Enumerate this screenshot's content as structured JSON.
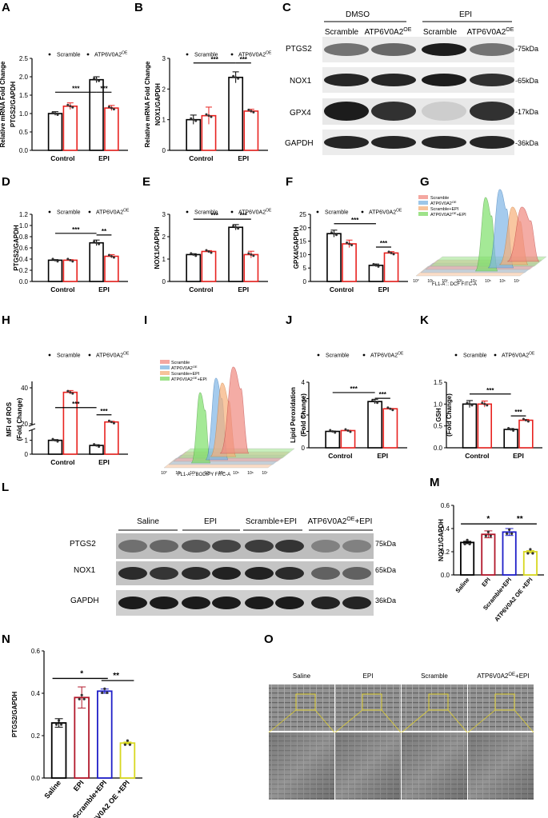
{
  "panel_labels": [
    "A",
    "B",
    "C",
    "D",
    "E",
    "F",
    "G",
    "H",
    "I",
    "J",
    "K",
    "L",
    "M",
    "N",
    "O"
  ],
  "legend": {
    "scramble": "Scramble",
    "oe_base": "ATP6V0A2",
    "oe_sup": "OE"
  },
  "colors": {
    "scramble": "#000000",
    "oe": "#e8221f",
    "sig": "#000000",
    "saline": "#000000",
    "epi": "#b2182b",
    "scr_epi": "#1f1fc8",
    "oe_epi": "#d8d820"
  },
  "blot_c": {
    "groups": [
      "DMSO",
      "EPI"
    ],
    "lanes": [
      "Scramble",
      "ATP6V0A2",
      "Scramble",
      "ATP6V0A2"
    ],
    "lane_sup": [
      "",
      "OE",
      "",
      "OE"
    ],
    "proteins": [
      "PTGS2",
      "NOX1",
      "GPX4",
      "GAPDH"
    ],
    "sizes": [
      "-75kDa",
      "-65kDa",
      "-17kDa",
      "-36kDa"
    ]
  },
  "blot_l": {
    "groups": [
      "Saline",
      "EPI",
      "Scramble+EPI",
      "ATP6V0A2"
    ],
    "group_sup": [
      "",
      "",
      "",
      "OE"
    ],
    "group_suffix": [
      "",
      "",
      "",
      "+EPI"
    ],
    "proteins": [
      "PTGS2",
      "NOX1",
      "GAPDH"
    ],
    "sizes": [
      "75kDa",
      "65kDa",
      "36kDa"
    ]
  },
  "flow_g": {
    "legend": [
      "Scramble",
      "ATP6V0A2",
      "Scramble+EPI",
      "ATP6V0A2"
    ],
    "legend_sup": [
      "",
      "OE",
      "",
      "OE"
    ],
    "legend_suffix": [
      "",
      "",
      "",
      "+EPI"
    ],
    "xlabel": "FL1-A :: DCF FITC-A",
    "ticks": [
      "10°",
      "10¹",
      "10²",
      "10³",
      "10⁴",
      "10⁵",
      "10⁶",
      "10⁷"
    ]
  },
  "flow_i": {
    "legend": [
      "Scramble",
      "ATP6V0A2",
      "Scramble+EPI",
      "ATP6V0A2"
    ],
    "legend_sup": [
      "",
      "OE",
      "",
      "OE"
    ],
    "legend_suffix": [
      "",
      "",
      "",
      "+EPI"
    ],
    "xlabel": "FL1-A :: BODIPY FITC-A",
    "ticks": [
      "10°",
      "10¹",
      "10²",
      "10³",
      "10⁴",
      "10⁵",
      "10⁶",
      "10⁷"
    ]
  },
  "tem_o": {
    "labels": [
      "Saline",
      "EPI",
      "Scramble",
      "ATP6V0A2"
    ],
    "label_sup": [
      "",
      "",
      "",
      "OE"
    ],
    "label_suffix": [
      "",
      "",
      "",
      "+EPI"
    ]
  },
  "chart_data": [
    {
      "id": "A",
      "type": "bar",
      "ylabel": [
        "Relative mRNA Fold Change",
        "PTGS2/GAPDH"
      ],
      "categories": [
        "Control",
        "EPI"
      ],
      "series": [
        {
          "name": "Scramble",
          "values": [
            1.0,
            1.92
          ],
          "err": [
            0.05,
            0.08
          ]
        },
        {
          "name": "ATP6V0A2 OE",
          "values": [
            1.2,
            1.15
          ],
          "err": [
            0.09,
            0.07
          ]
        }
      ],
      "ylim": [
        0,
        2.5
      ],
      "yticks": [
        "0.0",
        "0.5",
        "1.0",
        "1.5",
        "2.0",
        "2.5"
      ],
      "sig": [
        {
          "label": "***",
          "y": 1.58
        },
        {
          "label": "***",
          "y": 1.58
        }
      ]
    },
    {
      "id": "B",
      "type": "bar",
      "ylabel": [
        "Relative mRNA Fold Change",
        "NOX1/GAPDH"
      ],
      "categories": [
        "Control",
        "EPI"
      ],
      "series": [
        {
          "name": "Scramble",
          "values": [
            1.0,
            2.38
          ],
          "err": [
            0.15,
            0.18
          ]
        },
        {
          "name": "ATP6V0A2 OE",
          "values": [
            1.13,
            1.28
          ],
          "err": [
            0.28,
            0.06
          ]
        }
      ],
      "ylim": [
        0,
        3
      ],
      "yticks": [
        "0",
        "1",
        "2",
        "3"
      ],
      "sig": [
        {
          "label": "***",
          "y": 2.85
        },
        {
          "label": "***",
          "y": 2.85
        }
      ]
    },
    {
      "id": "D",
      "type": "bar",
      "ylabel": [
        "PTGS2/GAPDH"
      ],
      "categories": [
        "Control",
        "EPI"
      ],
      "series": [
        {
          "name": "Scramble",
          "values": [
            0.38,
            0.69
          ],
          "err": [
            0.01,
            0.05
          ]
        },
        {
          "name": "ATP6V0A2 OE",
          "values": [
            0.38,
            0.45
          ],
          "err": [
            0.01,
            0.03
          ]
        }
      ],
      "ylim": [
        0,
        1.2
      ],
      "yticks": [
        "0.0",
        "0.2",
        "0.4",
        "0.6",
        "0.8",
        "1.0",
        "1.2"
      ],
      "sig": [
        {
          "label": "***",
          "y": 0.86
        },
        {
          "label": "**",
          "y": 0.83
        }
      ]
    },
    {
      "id": "E",
      "type": "bar",
      "ylabel": [
        "NOX1/GAPDH"
      ],
      "categories": [
        "Control",
        "EPI"
      ],
      "series": [
        {
          "name": "Scramble",
          "values": [
            1.2,
            2.42
          ],
          "err": [
            0.04,
            0.12
          ]
        },
        {
          "name": "ATP6V0A2 OE",
          "values": [
            1.34,
            1.2
          ],
          "err": [
            0.04,
            0.15
          ]
        }
      ],
      "ylim": [
        0,
        3
      ],
      "yticks": [
        "0",
        "1",
        "2",
        "3"
      ],
      "sig": [
        {
          "label": "***",
          "y": 2.78
        },
        {
          "label": "***",
          "y": 2.78
        }
      ]
    },
    {
      "id": "F",
      "type": "bar",
      "ylabel": [
        "GPX4/GAPDH"
      ],
      "categories": [
        "Control",
        "EPI"
      ],
      "series": [
        {
          "name": "Scramble",
          "values": [
            17.8,
            6.0
          ],
          "err": [
            1.3,
            0.5
          ]
        },
        {
          "name": "ATP6V0A2 OE",
          "values": [
            14.0,
            10.6
          ],
          "err": [
            1.4,
            0.5
          ]
        }
      ],
      "ylim": [
        0,
        25
      ],
      "yticks": [
        "0",
        "5",
        "10",
        "15",
        "20",
        "25"
      ],
      "sig": [
        {
          "label": "***",
          "y": 21.5
        },
        {
          "label": "***",
          "y": 12.8
        }
      ]
    },
    {
      "id": "H",
      "type": "bar",
      "ylabel": [
        "MFI of ROS",
        "(Fold Change)"
      ],
      "categories": [
        "Control",
        "EPI"
      ],
      "series": [
        {
          "name": "Scramble",
          "values": [
            1.0,
            0.63
          ],
          "err": [
            0.05,
            0.05
          ]
        },
        {
          "name": "ATP6V0A2 OE",
          "values": [
            37.5,
            21.0
          ],
          "err": [
            1.0,
            0.4
          ]
        }
      ],
      "ylim": [
        0,
        40
      ],
      "yticks": [
        "0",
        "1",
        "20",
        "40"
      ],
      "broken_axis": true,
      "sig": [
        {
          "label": "***",
          "y": 29
        },
        {
          "label": "***",
          "y": 25
        }
      ]
    },
    {
      "id": "J",
      "type": "bar",
      "ylabel": [
        "Lipid Peroxidation",
        "(Fold Change)"
      ],
      "categories": [
        "Control",
        "EPI"
      ],
      "series": [
        {
          "name": "Scramble",
          "values": [
            1.0,
            2.82
          ],
          "err": [
            0.02,
            0.14
          ]
        },
        {
          "name": "ATP6V0A2 OE",
          "values": [
            1.05,
            2.38
          ],
          "err": [
            0.02,
            0.02
          ]
        }
      ],
      "ylim": [
        0,
        4
      ],
      "yticks": [
        "0",
        "1",
        "2",
        "3",
        "4"
      ],
      "sig": [
        {
          "label": "***",
          "y": 3.37
        },
        {
          "label": "***",
          "y": 3.02
        }
      ]
    },
    {
      "id": "K",
      "type": "bar",
      "ylabel": [
        "GSH",
        "(Fold Change)"
      ],
      "categories": [
        "Control",
        "EPI"
      ],
      "series": [
        {
          "name": "Scramble",
          "values": [
            1.0,
            0.42
          ],
          "err": [
            0.08,
            0.02
          ]
        },
        {
          "name": "ATP6V0A2 OE",
          "values": [
            1.0,
            0.63
          ],
          "err": [
            0.07,
            0.02
          ]
        }
      ],
      "ylim": [
        0,
        1.5
      ],
      "yticks": [
        "0.0",
        "0.5",
        "1.0",
        "1.5"
      ],
      "sig": [
        {
          "label": "***",
          "y": 1.23
        },
        {
          "label": "***",
          "y": 0.73
        }
      ]
    },
    {
      "id": "M",
      "type": "bar",
      "ylabel": [
        "NOX1/GAPDH"
      ],
      "categories": [
        "Saline",
        "EPI",
        "Scramble+EPI",
        "ATP6V0A2 OE +EPI"
      ],
      "values": [
        0.28,
        0.35,
        0.37,
        0.2
      ],
      "err": [
        0.01,
        0.03,
        0.03,
        0.01
      ],
      "ylim": [
        0,
        0.6
      ],
      "yticks": [
        "0.0",
        "0.2",
        "0.4",
        "0.6"
      ],
      "sig": [
        {
          "label": "*",
          "y": 0.44
        },
        {
          "label": "**",
          "y": 0.44
        }
      ]
    },
    {
      "id": "N",
      "type": "bar",
      "ylabel": [
        "PTGS2/GAPDH"
      ],
      "categories": [
        "Saline",
        "EPI",
        "Scramble+EPI",
        "ATP6V0A2 OE +EPI"
      ],
      "values": [
        0.26,
        0.38,
        0.41,
        0.165
      ],
      "err": [
        0.02,
        0.05,
        0.01,
        0.005
      ],
      "ylim": [
        0,
        0.6
      ],
      "yticks": [
        "0.0",
        "0.2",
        "0.4",
        "0.6"
      ],
      "sig": [
        {
          "label": "*",
          "y": 0.47
        },
        {
          "label": "**",
          "y": 0.46
        }
      ]
    }
  ]
}
